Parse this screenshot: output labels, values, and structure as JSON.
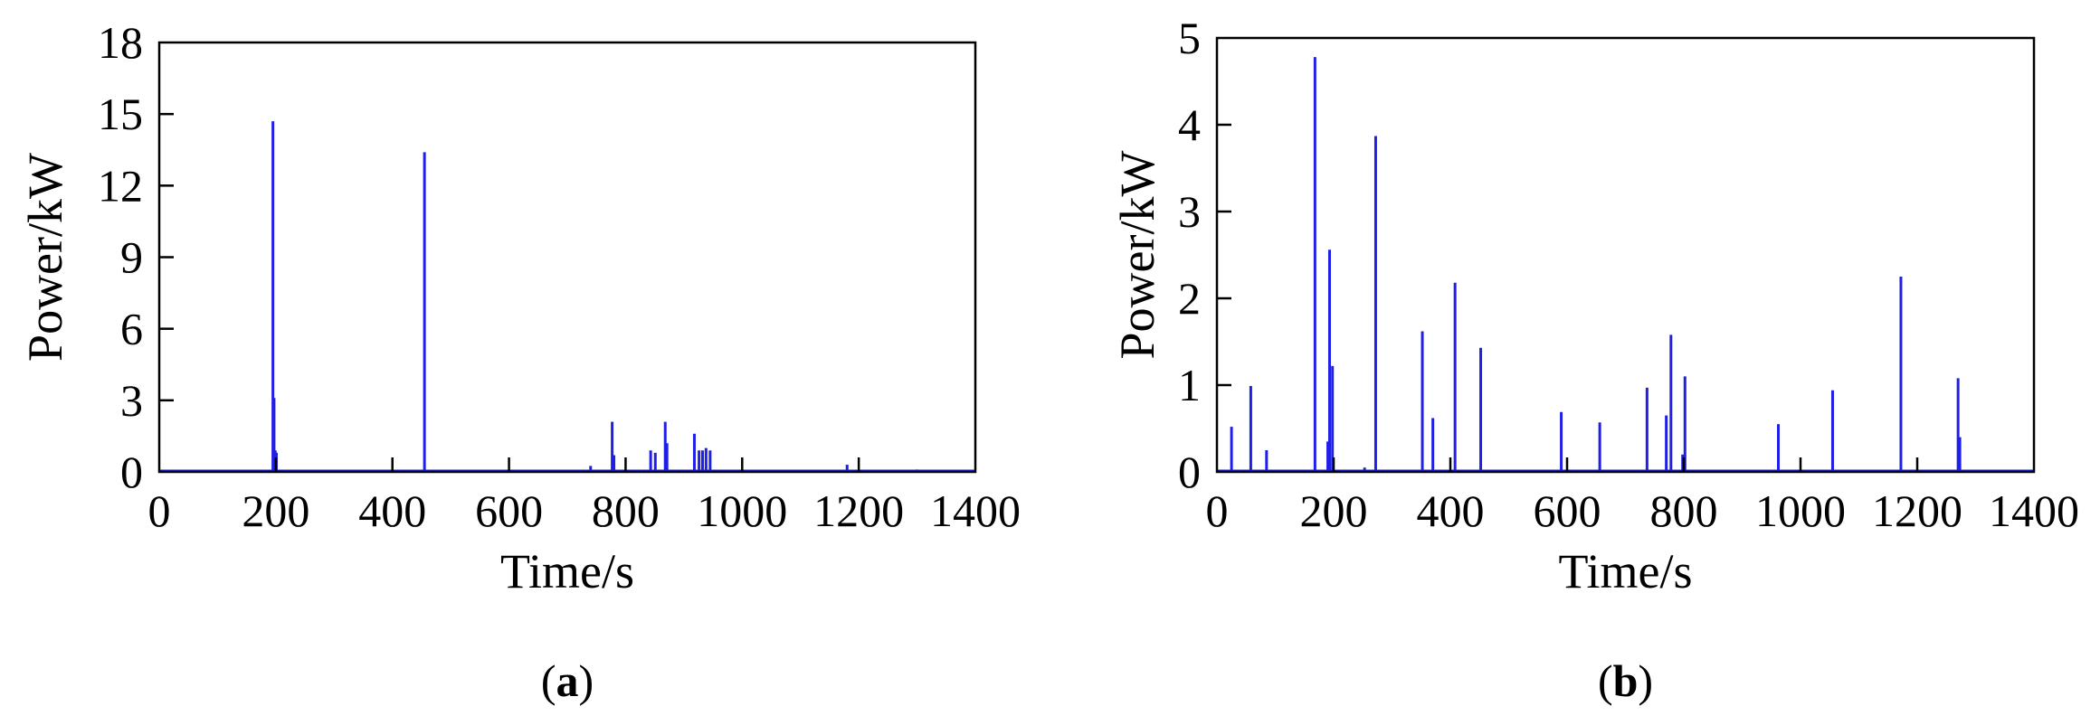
{
  "colors": {
    "series": "#1f1fe6",
    "axis": "#000000",
    "tick_marks": "#000000"
  },
  "chart_data": [
    {
      "type": "line",
      "panel_label": "a",
      "xlabel": "Time/s",
      "ylabel": "Power/kW",
      "xlim": [
        0,
        1400
      ],
      "ylim": [
        0,
        18
      ],
      "xticks": [
        0,
        200,
        400,
        600,
        800,
        1000,
        1200,
        1400
      ],
      "yticks": [
        0,
        3,
        6,
        9,
        12,
        15,
        18
      ],
      "grid": false,
      "spikes": [
        {
          "x": 195,
          "y": 14.7
        },
        {
          "x": 197,
          "y": 3.1
        },
        {
          "x": 199,
          "y": 0.9
        },
        {
          "x": 201,
          "y": 0.8
        },
        {
          "x": 455,
          "y": 13.4
        },
        {
          "x": 740,
          "y": 0.25
        },
        {
          "x": 777,
          "y": 2.1
        },
        {
          "x": 780,
          "y": 0.7
        },
        {
          "x": 843,
          "y": 0.9
        },
        {
          "x": 851,
          "y": 0.8
        },
        {
          "x": 868,
          "y": 2.1
        },
        {
          "x": 871,
          "y": 1.2
        },
        {
          "x": 918,
          "y": 1.6
        },
        {
          "x": 926,
          "y": 0.9
        },
        {
          "x": 932,
          "y": 0.9
        },
        {
          "x": 938,
          "y": 1.0
        },
        {
          "x": 945,
          "y": 0.9
        },
        {
          "x": 1180,
          "y": 0.3
        },
        {
          "x": 1300,
          "y": 0.1
        }
      ]
    },
    {
      "type": "line",
      "panel_label": "b",
      "xlabel": "Time/s",
      "ylabel": "Power/kW",
      "xlim": [
        0,
        1400
      ],
      "ylim": [
        0,
        5
      ],
      "xticks": [
        0,
        200,
        400,
        600,
        800,
        1000,
        1200,
        1400
      ],
      "yticks": [
        0,
        1,
        2,
        3,
        4,
        5
      ],
      "grid": false,
      "spikes": [
        {
          "x": 25,
          "y": 0.52
        },
        {
          "x": 58,
          "y": 0.99
        },
        {
          "x": 85,
          "y": 0.25
        },
        {
          "x": 168,
          "y": 4.78
        },
        {
          "x": 190,
          "y": 0.35
        },
        {
          "x": 193,
          "y": 2.56
        },
        {
          "x": 198,
          "y": 1.22
        },
        {
          "x": 253,
          "y": 0.05
        },
        {
          "x": 272,
          "y": 3.87
        },
        {
          "x": 352,
          "y": 1.62
        },
        {
          "x": 370,
          "y": 0.62
        },
        {
          "x": 408,
          "y": 2.18
        },
        {
          "x": 452,
          "y": 1.43
        },
        {
          "x": 590,
          "y": 0.69
        },
        {
          "x": 656,
          "y": 0.57
        },
        {
          "x": 737,
          "y": 0.97
        },
        {
          "x": 770,
          "y": 0.65
        },
        {
          "x": 778,
          "y": 1.58
        },
        {
          "x": 798,
          "y": 0.2
        },
        {
          "x": 802,
          "y": 1.1
        },
        {
          "x": 962,
          "y": 0.55
        },
        {
          "x": 1055,
          "y": 0.94
        },
        {
          "x": 1172,
          "y": 2.25
        },
        {
          "x": 1270,
          "y": 1.08
        },
        {
          "x": 1273,
          "y": 0.4
        }
      ]
    }
  ]
}
